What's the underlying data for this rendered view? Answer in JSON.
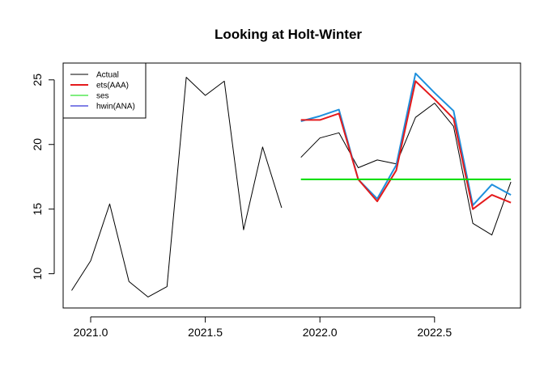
{
  "chart_data": {
    "type": "line",
    "title": "Looking at Holt-Winter",
    "xlabel": "",
    "ylabel": "",
    "xlim": [
      2020.88,
      2022.875
    ],
    "ylim": [
      7.35,
      26.3
    ],
    "x_ticks": [
      2021.0,
      2021.5,
      2022.0,
      2022.5
    ],
    "x_tick_labels": [
      "2021.0",
      "2021.5",
      "2022.0",
      "2022.5"
    ],
    "y_ticks": [
      10,
      15,
      20,
      25
    ],
    "y_tick_labels": [
      "10",
      "15",
      "20",
      "25"
    ],
    "grid": false,
    "legend_position": "top-left",
    "legend": [
      {
        "label": "Actual",
        "color": "#000000",
        "width": 1
      },
      {
        "label": "ets(AAA)",
        "color": "#e41a1c",
        "width": 2
      },
      {
        "label": "ses",
        "color": "#00dd00",
        "width": 1
      },
      {
        "label": "hwin(ANA)",
        "color": "#0000cc",
        "width": 1
      }
    ],
    "series": [
      {
        "name": "Actual",
        "color": "#000000",
        "width": 1,
        "x": [
          2020.917,
          2021.0,
          2021.083,
          2021.167,
          2021.25,
          2021.333,
          2021.417,
          2021.5,
          2021.583,
          2021.667,
          2021.75,
          2021.833
        ],
        "values": [
          8.7,
          11.0,
          15.4,
          9.4,
          8.2,
          9.0,
          25.2,
          23.8,
          24.9,
          13.4,
          19.8,
          15.1
        ]
      },
      {
        "name": "Actual (test)",
        "color": "#000000",
        "width": 1,
        "x": [
          2021.917,
          2022.0,
          2022.083,
          2022.167,
          2022.25,
          2022.333,
          2022.417,
          2022.5,
          2022.583,
          2022.667,
          2022.75,
          2022.833
        ],
        "values": [
          19.0,
          20.5,
          20.9,
          18.2,
          18.8,
          18.5,
          22.1,
          23.2,
          21.4,
          13.9,
          13.0,
          17.1
        ]
      },
      {
        "name": "hwin(ANA)",
        "color": "#1e90dd",
        "width": 2,
        "x": [
          2021.917,
          2022.0,
          2022.083,
          2022.167,
          2022.25,
          2022.333,
          2022.417,
          2022.5,
          2022.583,
          2022.667,
          2022.75,
          2022.833
        ],
        "values": [
          21.8,
          22.2,
          22.7,
          17.3,
          15.8,
          18.4,
          25.5,
          24.0,
          22.6,
          15.3,
          16.9,
          16.1
        ]
      },
      {
        "name": "ets(AAA)",
        "color": "#e41a1c",
        "width": 2,
        "x": [
          2021.917,
          2022.0,
          2022.083,
          2022.167,
          2022.25,
          2022.333,
          2022.417,
          2022.5,
          2022.583,
          2022.667,
          2022.75,
          2022.833
        ],
        "values": [
          21.9,
          21.9,
          22.4,
          17.3,
          15.6,
          18.0,
          24.9,
          23.5,
          22.0,
          15.0,
          16.1,
          15.5
        ]
      },
      {
        "name": "ses",
        "color": "#00dd00",
        "width": 2,
        "x": [
          2021.917,
          2022.833
        ],
        "values": [
          17.3,
          17.3
        ]
      }
    ]
  }
}
